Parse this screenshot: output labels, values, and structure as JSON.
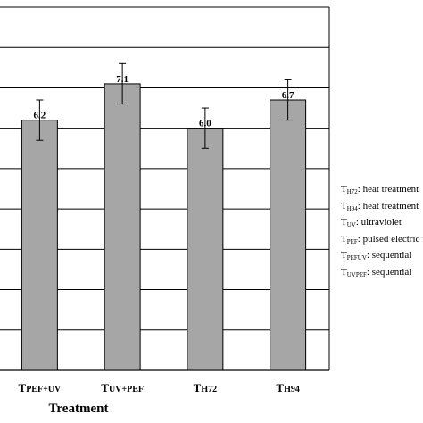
{
  "chart_data": {
    "type": "bar",
    "xlabel": "Treatment",
    "ylabel": "",
    "categories": [
      {
        "main": "T",
        "sub": "PEF+UV"
      },
      {
        "main": "T",
        "sub": "UV+PEF"
      },
      {
        "main": "T",
        "sub": "H72"
      },
      {
        "main": "T",
        "sub": "H94"
      }
    ],
    "values": [
      6.2,
      7.1,
      6.0,
      6.7
    ],
    "value_labels": [
      "6.2",
      "7.1",
      "6.0",
      "6.7"
    ],
    "error": [
      0.5,
      0.5,
      0.5,
      0.5
    ],
    "ylim": [
      0,
      9
    ],
    "grid": true,
    "bar_color": "#a6a6a6",
    "legend": [
      {
        "main": "T",
        "sub": "H72",
        "text": ": heat treatment"
      },
      {
        "main": "T",
        "sub": "H94",
        "text": ": heat treatment"
      },
      {
        "main": "T",
        "sub": "UV",
        "text": ": ultraviolet"
      },
      {
        "main": "T",
        "sub": "PEF",
        "text": ": pulsed electric field"
      },
      {
        "main": "T",
        "sub": "PEFUV",
        "text": ": sequential"
      },
      {
        "main": "T",
        "sub": "UVPEF",
        "text": ": sequential"
      }
    ]
  }
}
